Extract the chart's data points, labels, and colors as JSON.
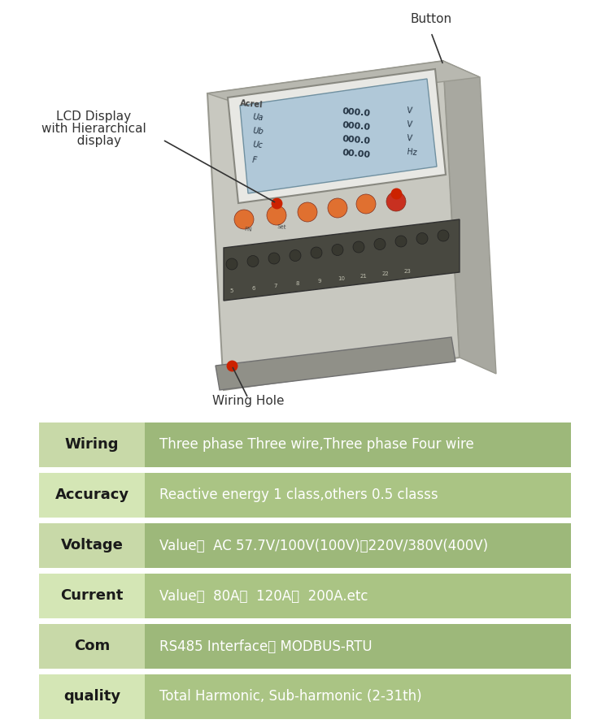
{
  "bg_color": "#ffffff",
  "table_rows": [
    {
      "label": "Wiring",
      "value": "Three phase Three wire,Three phase Four wire",
      "label_bg": "#c8d9a8",
      "value_bg": "#9db87a",
      "label_color": "#1a1a1a",
      "value_color": "#ffffff"
    },
    {
      "label": "Accuracy",
      "value": "Reactive energy 1 class,others 0.5 classs",
      "label_bg": "#d4e6b5",
      "value_bg": "#aac484",
      "label_color": "#1a1a1a",
      "value_color": "#ffffff"
    },
    {
      "label": "Voltage",
      "value": "Value：  AC 57.7V/100V(100V)、220V/380V(400V)",
      "label_bg": "#c8d9a8",
      "value_bg": "#9db87a",
      "label_color": "#1a1a1a",
      "value_color": "#ffffff"
    },
    {
      "label": "Current",
      "value": "Value：  80A，  120A，  200A.etc",
      "label_bg": "#d4e6b5",
      "value_bg": "#aac484",
      "label_color": "#1a1a1a",
      "value_color": "#ffffff"
    },
    {
      "label": "Com",
      "value": "RS485 Interface、 MODBUS-RTU",
      "label_bg": "#c8d9a8",
      "value_bg": "#9db87a",
      "label_color": "#1a1a1a",
      "value_color": "#ffffff"
    },
    {
      "label": "quality",
      "value": "Total Harmonic, Sub-harmonic (2-31th)",
      "label_bg": "#d4e6b5",
      "value_bg": "#aac484",
      "label_color": "#1a1a1a",
      "value_color": "#ffffff"
    }
  ],
  "label_fontsize": 13,
  "value_fontsize": 12,
  "annotation_fontsize": 11,
  "device_color_body": "#d8d8d0",
  "device_color_lcd": "#c8dae8",
  "device_color_dark": "#888878",
  "device_color_button_orange": "#e07830",
  "device_color_button_red": "#cc2200"
}
